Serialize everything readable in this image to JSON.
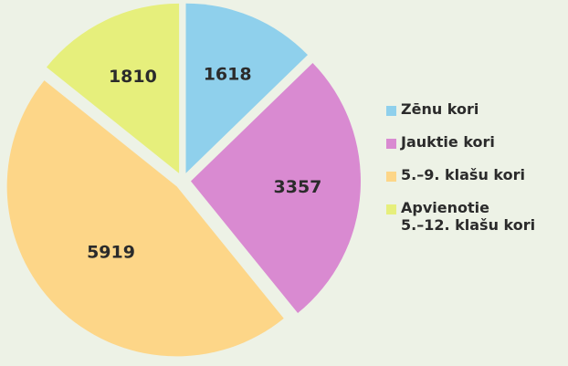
{
  "chart_data": {
    "type": "pie",
    "categories": [
      "Zēnu kori",
      "Jauktie kori",
      "5.–9. klašu kori",
      "Apvienotie\n5.–12. klašu kori"
    ],
    "values": [
      1618,
      3357,
      5919,
      1810
    ],
    "colors": [
      "#8fd0ec",
      "#d98ad1",
      "#fdd688",
      "#e6ef7c"
    ],
    "start_angle": 0,
    "direction": "clockwise",
    "exploded": true
  }
}
